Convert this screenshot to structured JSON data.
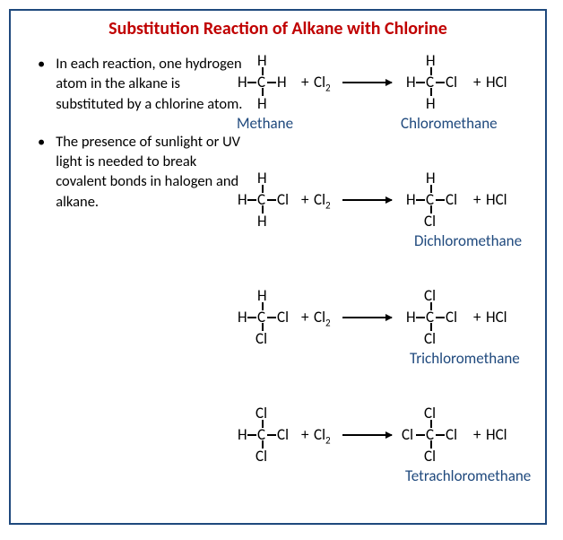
{
  "title": "Substitution Reaction of Alkane with Chlorine",
  "title_color": "#c00000",
  "border_color": "#1f497d",
  "label_color": "#1f497d",
  "text_color": "#000000",
  "bullets": [
    "In each reaction, one hydrogen atom in the alkane is substituted by a chlorine atom.",
    "The presence of sunlight or UV light is needed to break covalent bonds in halogen and alkane."
  ],
  "reactions": [
    {
      "reactant": {
        "top": "H",
        "left": "H",
        "right": "H",
        "bottom": "H"
      },
      "reagent": "Cl",
      "product": {
        "top": "H",
        "left": "H",
        "right": "Cl",
        "bottom": "H"
      },
      "byproduct": "HCl",
      "label_left": "Methane",
      "label_right": "Chloromethane"
    },
    {
      "reactant": {
        "top": "H",
        "left": "H",
        "right": "Cl",
        "bottom": "H"
      },
      "reagent": "Cl",
      "product": {
        "top": "H",
        "left": "H",
        "right": "Cl",
        "bottom": "Cl"
      },
      "byproduct": "HCl",
      "label_left": "",
      "label_right": "Dichloromethane"
    },
    {
      "reactant": {
        "top": "H",
        "left": "H",
        "right": "Cl",
        "bottom": "Cl"
      },
      "reagent": "Cl",
      "product": {
        "top": "Cl",
        "left": "H",
        "right": "Cl",
        "bottom": "Cl"
      },
      "byproduct": "HCl",
      "label_left": "",
      "label_right": "Trichloromethane"
    },
    {
      "reactant": {
        "top": "Cl",
        "left": "H",
        "right": "Cl",
        "bottom": "Cl"
      },
      "reagent": "Cl",
      "product": {
        "top": "Cl",
        "left": "Cl",
        "right": "Cl",
        "bottom": "Cl"
      },
      "byproduct": "HCl",
      "label_left": "",
      "label_right": "Tetrachloromethane"
    }
  ]
}
